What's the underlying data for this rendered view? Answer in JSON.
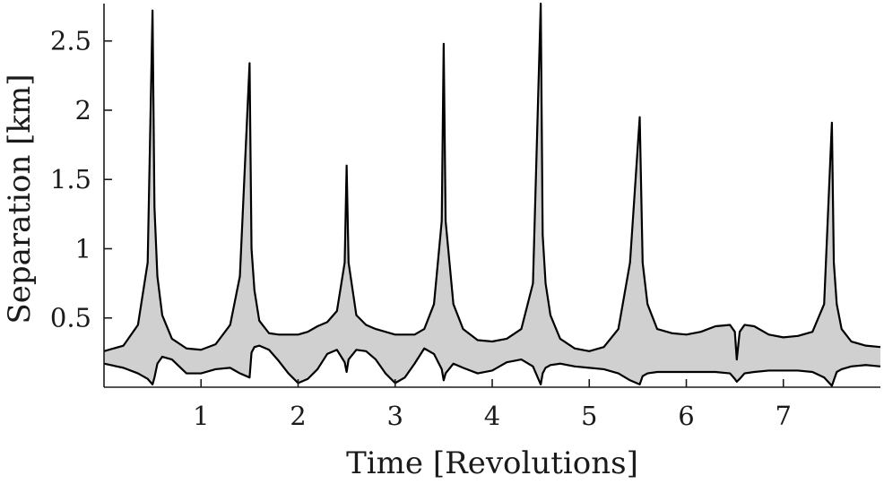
{
  "chart_data": {
    "type": "area",
    "title": "",
    "xlabel": "Time [Revolutions]",
    "ylabel": "Separation [km]",
    "xlim": [
      0,
      8
    ],
    "ylim": [
      0,
      2.77
    ],
    "xticks": [
      1,
      2,
      3,
      4,
      5,
      6,
      7
    ],
    "xtick_labels": [
      "1",
      "2",
      "3",
      "4",
      "5",
      "6",
      "7"
    ],
    "yticks": [
      0.5,
      1,
      1.5,
      2,
      2.5
    ],
    "ytick_labels": [
      "0.5",
      "1",
      "1.5",
      "2",
      "2.5"
    ],
    "grid": false,
    "band_color": "#d0d0d0",
    "line_color": "#000000",
    "series": [
      {
        "x": [
          0,
          0.2,
          0.35,
          0.45,
          0.5,
          0.52,
          0.55,
          0.6,
          0.7,
          0.85,
          1.0,
          1.15,
          1.3,
          1.4,
          1.5,
          1.52,
          1.55,
          1.6,
          1.7,
          1.8,
          1.9,
          2.0,
          2.1,
          2.2,
          2.3,
          2.4,
          2.48,
          2.5,
          2.52,
          2.6,
          2.7,
          2.8,
          2.9,
          3.0,
          3.1,
          3.2,
          3.3,
          3.4,
          3.48,
          3.5,
          3.52,
          3.6,
          3.7,
          3.85,
          4.0,
          4.15,
          4.3,
          4.42,
          4.5,
          4.52,
          4.55,
          4.6,
          4.7,
          4.85,
          5.0,
          5.15,
          5.3,
          5.42,
          5.52,
          5.55,
          5.6,
          5.7,
          5.85,
          6.0,
          6.15,
          6.3,
          6.45,
          6.5,
          6.52,
          6.55,
          6.6,
          6.7,
          6.85,
          7.0,
          7.15,
          7.3,
          7.42,
          7.5,
          7.52,
          7.55,
          7.6,
          7.7,
          7.85,
          8.0
        ],
        "upper": [
          0.26,
          0.3,
          0.45,
          0.9,
          2.72,
          1.3,
          0.8,
          0.52,
          0.35,
          0.28,
          0.27,
          0.31,
          0.45,
          0.8,
          2.34,
          1.0,
          0.7,
          0.48,
          0.39,
          0.38,
          0.38,
          0.38,
          0.4,
          0.44,
          0.47,
          0.55,
          0.9,
          1.6,
          0.9,
          0.52,
          0.45,
          0.42,
          0.4,
          0.38,
          0.38,
          0.38,
          0.42,
          0.6,
          1.2,
          2.48,
          1.2,
          0.6,
          0.42,
          0.34,
          0.33,
          0.35,
          0.42,
          0.75,
          2.77,
          1.1,
          0.75,
          0.52,
          0.35,
          0.28,
          0.26,
          0.29,
          0.42,
          0.9,
          1.95,
          0.9,
          0.6,
          0.42,
          0.39,
          0.38,
          0.4,
          0.44,
          0.45,
          0.4,
          0.2,
          0.4,
          0.45,
          0.44,
          0.38,
          0.36,
          0.37,
          0.4,
          0.6,
          1.91,
          0.9,
          0.6,
          0.42,
          0.33,
          0.3,
          0.29
        ],
        "lower": [
          0.17,
          0.14,
          0.1,
          0.06,
          0.02,
          0.07,
          0.17,
          0.22,
          0.2,
          0.1,
          0.1,
          0.13,
          0.14,
          0.1,
          0.07,
          0.25,
          0.29,
          0.3,
          0.27,
          0.19,
          0.1,
          0.03,
          0.06,
          0.13,
          0.24,
          0.27,
          0.18,
          0.11,
          0.2,
          0.27,
          0.26,
          0.2,
          0.1,
          0.03,
          0.07,
          0.17,
          0.28,
          0.24,
          0.13,
          0.05,
          0.1,
          0.17,
          0.14,
          0.1,
          0.12,
          0.18,
          0.2,
          0.15,
          0.02,
          0.1,
          0.14,
          0.16,
          0.17,
          0.15,
          0.14,
          0.13,
          0.1,
          0.05,
          0.02,
          0.08,
          0.1,
          0.11,
          0.11,
          0.11,
          0.11,
          0.11,
          0.1,
          0.06,
          0.04,
          0.06,
          0.1,
          0.11,
          0.12,
          0.12,
          0.12,
          0.11,
          0.07,
          0.01,
          0.05,
          0.11,
          0.13,
          0.15,
          0.16,
          0.15
        ]
      }
    ]
  }
}
